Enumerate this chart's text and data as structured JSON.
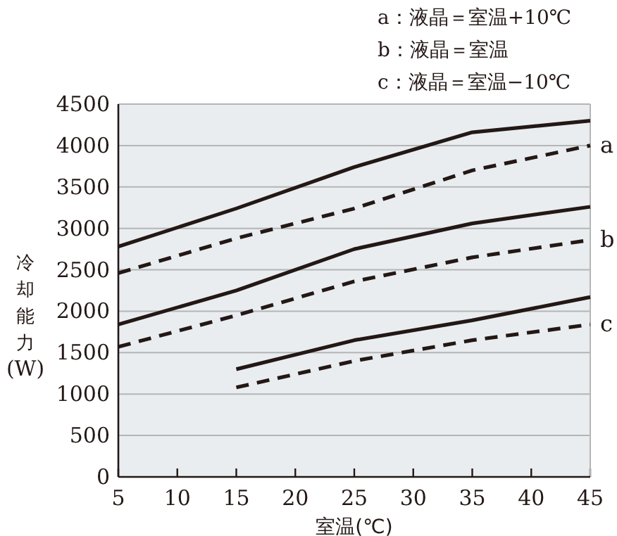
{
  "chart_data": {
    "type": "line",
    "xlabel": "室温(℃)",
    "ylabel": "冷却能力(W)",
    "x": [
      5,
      15,
      25,
      35,
      45
    ],
    "series": [
      {
        "color": "#231815",
        "line_style": "solid",
        "values": [
          2780,
          3240,
          3740,
          4160,
          4300
        ]
      },
      {
        "name": "a",
        "color": "#231815",
        "line_style": "dashed",
        "values": [
          2460,
          2880,
          3240,
          3700,
          4000
        ]
      },
      {
        "color": "#231815",
        "line_style": "solid",
        "values": [
          1840,
          2250,
          2750,
          3060,
          3260
        ]
      },
      {
        "name": "b",
        "color": "#231815",
        "line_style": "dashed",
        "values": [
          1570,
          1950,
          2360,
          2650,
          2860
        ]
      },
      {
        "color": "#231815",
        "line_style": "solid",
        "values": [
          null,
          1300,
          1650,
          1890,
          2170
        ]
      },
      {
        "name": "c",
        "color": "#231815",
        "line_style": "dashed",
        "values": [
          null,
          1080,
          1400,
          1650,
          1840
        ]
      }
    ],
    "xlim": [
      5,
      45
    ],
    "xticks": [
      5,
      10,
      15,
      20,
      25,
      30,
      35,
      40,
      45
    ],
    "ylim": [
      0,
      4500
    ],
    "yticks": [
      0,
      500,
      1000,
      1500,
      2000,
      2500,
      3000,
      3500,
      4000,
      4500
    ],
    "grid": "y",
    "annotations": [
      "a：液晶＝室温+10℃",
      "b：液晶＝室温",
      "c：液晶＝室温−10℃"
    ]
  }
}
